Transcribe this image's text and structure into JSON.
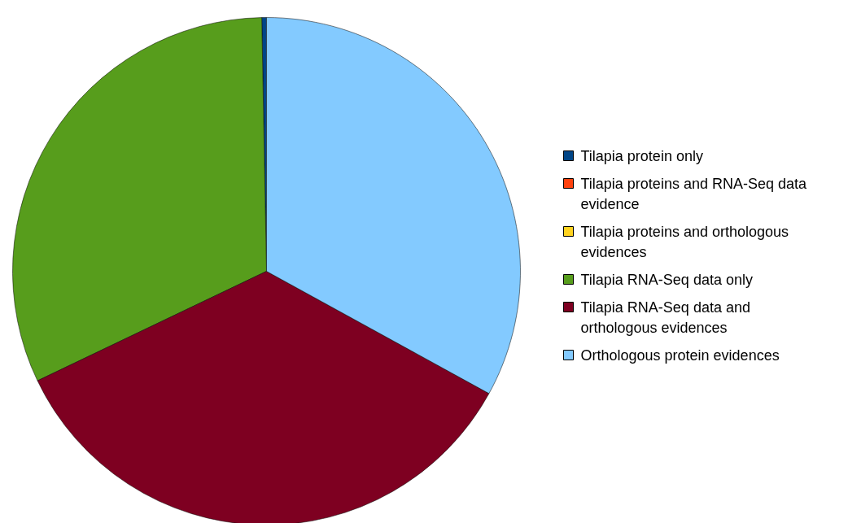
{
  "chart_data": {
    "type": "pie",
    "categories": [
      "Tilapia protein only",
      "Tilapia proteins and RNA-Seq data evidence",
      "Tilapia proteins and orthologous evidences",
      "Tilapia RNA-Seq data only",
      "Tilapia RNA-Seq data and orthologous evidences",
      "Orthologous protein evidences"
    ],
    "values": [
      0.3,
      0,
      0,
      31.8,
      34.9,
      33.0
    ],
    "colors": [
      "#004586",
      "#ff420e",
      "#ffd320",
      "#579d1c",
      "#7e0021",
      "#83caff"
    ],
    "legend": "right"
  }
}
